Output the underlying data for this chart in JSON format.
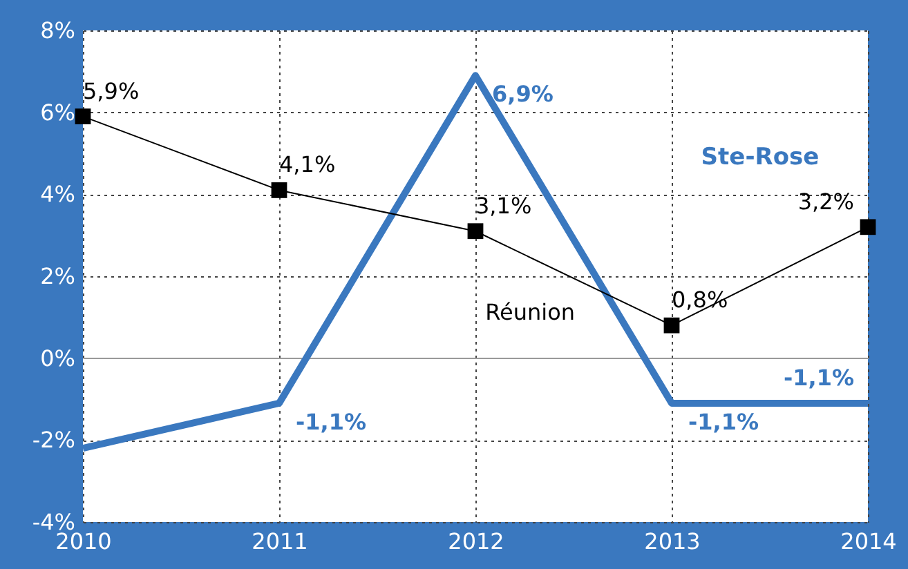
{
  "chart_data": {
    "type": "line",
    "x": [
      2010,
      2011,
      2012,
      2013,
      2014
    ],
    "xlim": [
      2010,
      2014
    ],
    "xticks": [
      2010,
      2011,
      2012,
      2013,
      2014
    ],
    "ylim": [
      -4,
      8
    ],
    "yticks": [
      {
        "value": -4,
        "label": "-4%"
      },
      {
        "value": -2,
        "label": "-2%"
      },
      {
        "value": 0,
        "label": "0%"
      },
      {
        "value": 2,
        "label": "2%"
      },
      {
        "value": 4,
        "label": "4%"
      },
      {
        "value": 6,
        "label": "6%"
      },
      {
        "value": 8,
        "label": "8%"
      }
    ],
    "grid": true,
    "series": [
      {
        "name": "Ste-Rose",
        "color": "#3a78bf",
        "marker": "none",
        "values": [
          -2.2,
          -1.1,
          6.9,
          -1.1,
          -1.1
        ],
        "value_labels": [
          null,
          "-1,1%",
          "6,9%",
          "-1,1%",
          "-1,1%"
        ]
      },
      {
        "name": "Réunion",
        "color": "#000000",
        "marker": "square",
        "values": [
          5.9,
          4.1,
          3.1,
          0.8,
          3.2
        ],
        "value_labels": [
          "5,9%",
          "4,1%",
          "3,1%",
          "0,8%",
          "3,2%"
        ]
      }
    ]
  }
}
